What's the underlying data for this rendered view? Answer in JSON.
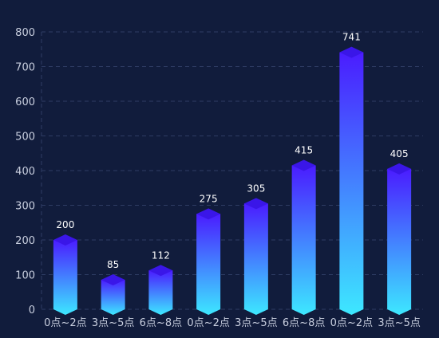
{
  "chart_data": {
    "type": "bar",
    "categories": [
      "0点~2点",
      "3点~5点",
      "6点~8点",
      "0点~2点",
      "3点~5点",
      "6点~8点",
      "0点~2点",
      "3点~5点"
    ],
    "values": [
      200,
      85,
      112,
      275,
      305,
      415,
      741,
      405
    ],
    "ylim": [
      0,
      800
    ],
    "yticks": [
      0,
      100,
      200,
      300,
      400,
      500,
      600,
      700,
      800
    ],
    "grid": true,
    "data_labels": true
  },
  "colors": {
    "background": "#111c3c",
    "bar_top": "#4a1cff",
    "bar_bottom": "#3de8ff",
    "cap": "#3a16e8",
    "grid": "#2e3c63",
    "axis_text": "#c9cfdf",
    "label_text": "#ffffff"
  }
}
